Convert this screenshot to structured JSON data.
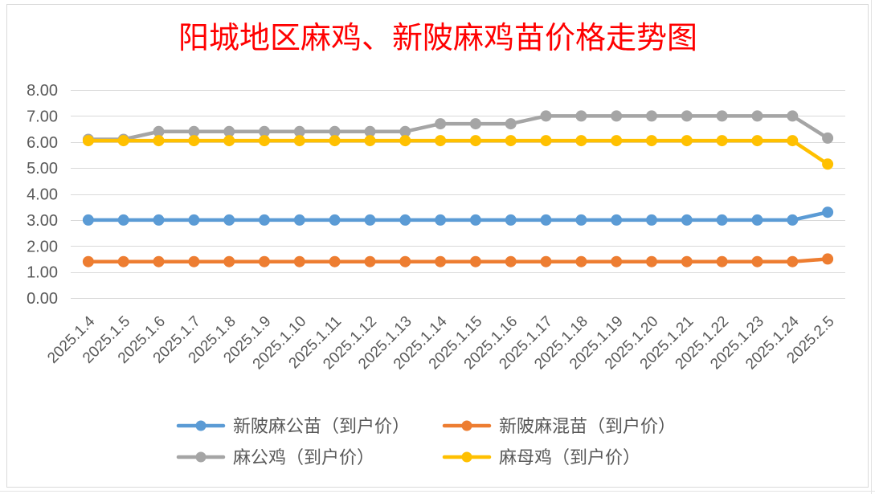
{
  "chart_data": {
    "type": "line",
    "title": "阳城地区麻鸡、新陂麻鸡苗价格走势图",
    "title_color": "#FF0000",
    "categories": [
      "2025.1.4",
      "2025.1.5",
      "2025.1.6",
      "2025.1.7",
      "2025.1.8",
      "2025.1.9",
      "2025.1.10",
      "2025.1.11",
      "2025.1.12",
      "2025.1.13",
      "2025.1.14",
      "2025.1.15",
      "2025.1.16",
      "2025.1.17",
      "2025.1.18",
      "2025.1.19",
      "2025.1.20",
      "2025.1.21",
      "2025.1.22",
      "2025.1.23",
      "2025.1.24",
      "2025.2.5"
    ],
    "ylim": [
      0,
      8
    ],
    "yticks": [
      "0.00",
      "1.00",
      "2.00",
      "3.00",
      "4.00",
      "5.00",
      "6.00",
      "7.00",
      "8.00"
    ],
    "grid": true,
    "legend_position": "bottom",
    "series": [
      {
        "name": "新陂麻公苗（到户价）",
        "color": "#5B9BD5",
        "values": [
          3.0,
          3.0,
          3.0,
          3.0,
          3.0,
          3.0,
          3.0,
          3.0,
          3.0,
          3.0,
          3.0,
          3.0,
          3.0,
          3.0,
          3.0,
          3.0,
          3.0,
          3.0,
          3.0,
          3.0,
          3.0,
          3.3
        ]
      },
      {
        "name": "新陂麻混苗（到户价）",
        "color": "#ED7D31",
        "values": [
          1.4,
          1.4,
          1.4,
          1.4,
          1.4,
          1.4,
          1.4,
          1.4,
          1.4,
          1.4,
          1.4,
          1.4,
          1.4,
          1.4,
          1.4,
          1.4,
          1.4,
          1.4,
          1.4,
          1.4,
          1.4,
          1.5
        ]
      },
      {
        "name": "麻公鸡（到户价）",
        "color": "#A5A5A5",
        "values": [
          6.1,
          6.1,
          6.4,
          6.4,
          6.4,
          6.4,
          6.4,
          6.4,
          6.4,
          6.4,
          6.7,
          6.7,
          6.7,
          7.0,
          7.0,
          7.0,
          7.0,
          7.0,
          7.0,
          7.0,
          7.0,
          6.15
        ]
      },
      {
        "name": "麻母鸡（到户价）",
        "color": "#FFC000",
        "values": [
          6.05,
          6.05,
          6.05,
          6.05,
          6.05,
          6.05,
          6.05,
          6.05,
          6.05,
          6.05,
          6.05,
          6.05,
          6.05,
          6.05,
          6.05,
          6.05,
          6.05,
          6.05,
          6.05,
          6.05,
          6.05,
          5.15
        ]
      }
    ]
  }
}
